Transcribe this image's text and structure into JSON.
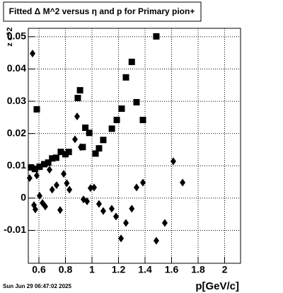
{
  "chart_data": {
    "type": "scatter",
    "title": "Fitted Δ M^2 versus η and p for Primary pion+",
    "x_label": "p[GeV/c]",
    "y_label": "z c^2",
    "timestamp": "Sun Jun 29 06:47:02 2025",
    "xlim": [
      0.52,
      2.12
    ],
    "ylim": [
      -0.0202,
      0.0526
    ],
    "xticks": [
      0.6,
      0.8,
      1,
      1.2,
      1.4,
      1.6,
      1.8,
      2
    ],
    "yticks": [
      -0.01,
      0,
      0.01,
      0.02,
      0.03,
      0.04,
      0.05
    ],
    "grid": true,
    "series": [
      {
        "marker": "square",
        "color": "#000000",
        "x": [
          0.584,
          0.54,
          0.57,
          0.605,
          0.64,
          0.67,
          0.7,
          0.73,
          0.765,
          0.8,
          0.825,
          0.893,
          0.91,
          0.93,
          0.95,
          0.98,
          1.027,
          1.053,
          1.085,
          1.15,
          1.187,
          1.224,
          1.256,
          1.3,
          1.336,
          1.384,
          1.485
        ],
        "values": [
          0.0275,
          0.0095,
          0.009,
          0.0097,
          0.0105,
          0.011,
          0.0123,
          0.0125,
          0.0143,
          0.0136,
          0.0143,
          0.031,
          0.0334,
          0.0158,
          0.0218,
          0.0202,
          0.0138,
          0.0154,
          0.018,
          0.0215,
          0.0242,
          0.0277,
          0.0374,
          0.0422,
          0.0297,
          0.0242,
          0.0501
        ]
      },
      {
        "marker": "diamond",
        "color": "#000000",
        "x": [
          0.552,
          0.53,
          0.563,
          0.584,
          0.573,
          0.605,
          0.627,
          0.648,
          0.68,
          0.7,
          0.733,
          0.76,
          0.787,
          0.81,
          0.83,
          0.872,
          0.888,
          0.915,
          0.936,
          0.963,
          0.989,
          1.016,
          1.053,
          1.085,
          1.149,
          1.181,
          1.219,
          1.256,
          1.3,
          1.336,
          1.384,
          1.485,
          1.549,
          1.613,
          1.683
        ],
        "values": [
          0.0448,
          0.0062,
          -0.0022,
          0.007,
          -0.0035,
          0.0007,
          -0.0015,
          -0.0026,
          0.0088,
          0.0026,
          0.004,
          -0.0037,
          0.0075,
          0.0046,
          0.0026,
          0.0182,
          0.0253,
          0.0158,
          -0.0004,
          -0.001,
          0.0031,
          0.0033,
          -0.0018,
          -0.004,
          -0.0033,
          -0.0057,
          -0.0125,
          -0.0077,
          -0.0033,
          0.0033,
          0.0048,
          -0.0132,
          -0.0077,
          0.0114,
          0.0048
        ]
      }
    ]
  }
}
